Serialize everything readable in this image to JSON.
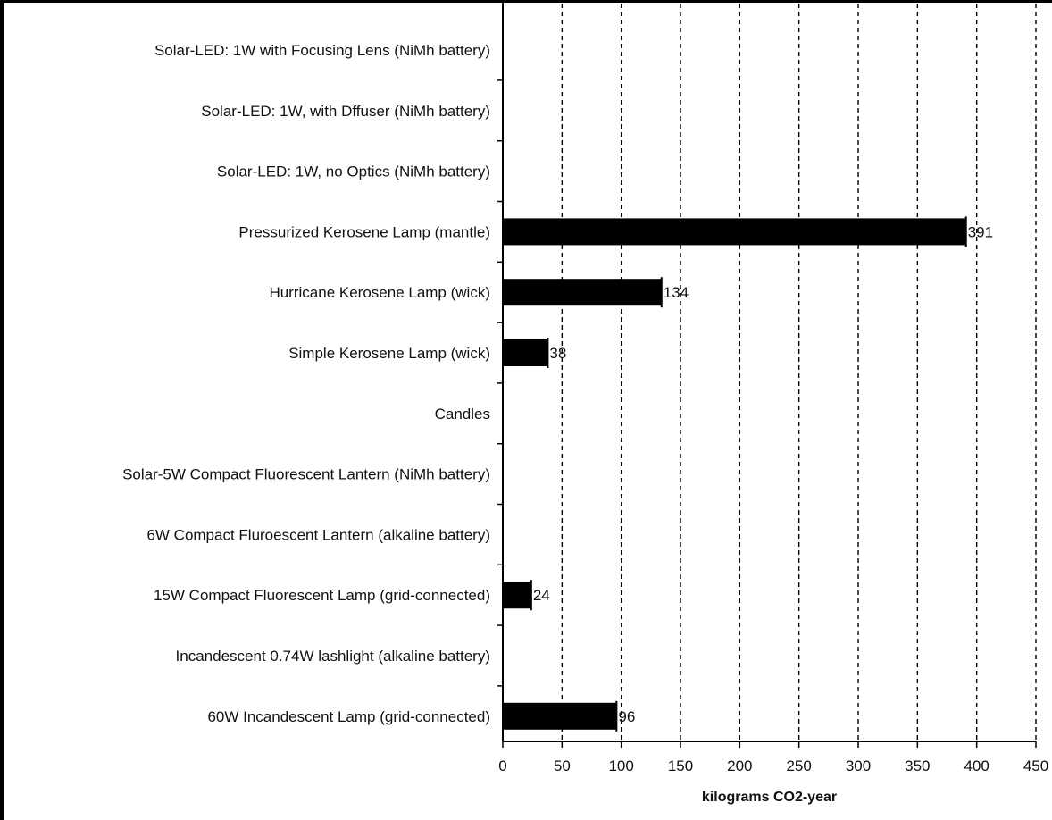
{
  "chart_data": {
    "type": "bar",
    "orientation": "horizontal",
    "categories": [
      "Solar-LED: 1W with Focusing Lens (NiMh battery)",
      "Solar-LED: 1W, with Dffuser (NiMh battery)",
      "Solar-LED: 1W, no Optics (NiMh battery)",
      "Pressurized Kerosene Lamp (mantle)",
      "Hurricane Kerosene Lamp (wick)",
      "Simple Kerosene Lamp (wick)",
      "Candles",
      "Solar-5W Compact Fluorescent Lantern (NiMh battery)",
      "6W Compact Fluroescent Lantern (alkaline battery)",
      "15W Compact Fluorescent Lamp (grid-connected)",
      "Incandescent 0.74W lashlight (alkaline battery)",
      "60W Incandescent Lamp (grid-connected)"
    ],
    "values": [
      null,
      null,
      null,
      391,
      134,
      38,
      null,
      null,
      null,
      24,
      null,
      96
    ],
    "data_labels": [
      "",
      "",
      "",
      "391",
      "134",
      "38",
      "",
      "",
      "",
      "24",
      "",
      "96"
    ],
    "xlabel": "kilograms CO2-year",
    "ylabel": "",
    "xlim": [
      0,
      450
    ],
    "xticks": [
      0,
      50,
      100,
      150,
      200,
      250,
      300,
      350,
      400,
      450
    ],
    "grid": "vertical dashed",
    "bar_color": "#000000"
  }
}
